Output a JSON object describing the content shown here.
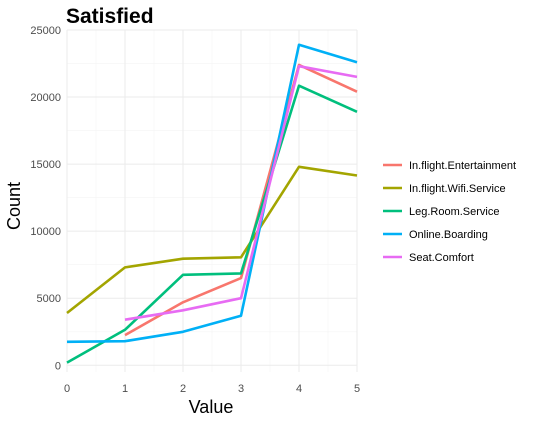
{
  "chart_data": {
    "type": "line",
    "title": "Satisfied",
    "xlabel": "Value",
    "ylabel": "Count",
    "xlim": [
      0,
      5
    ],
    "ylim": [
      -500,
      25000
    ],
    "x_ticks": [
      0,
      1,
      2,
      3,
      4,
      5
    ],
    "y_ticks": [
      0,
      5000,
      10000,
      15000,
      20000,
      25000
    ],
    "x_tick_labels": [
      "0",
      "1",
      "2",
      "3",
      "4",
      "5"
    ],
    "y_tick_labels": [
      "0",
      "5000",
      "10000",
      "15000",
      "20000",
      "25000"
    ],
    "grid": true,
    "legend_position": "right",
    "series": [
      {
        "name": "In.flight.Entertainment",
        "color": "#F8766D",
        "points": [
          [
            1,
            2250
          ],
          [
            2,
            4700
          ],
          [
            3,
            6500
          ],
          [
            4,
            22400
          ],
          [
            5,
            20400
          ]
        ]
      },
      {
        "name": "In.flight.Wifi.Service",
        "color": "#A3A500",
        "points": [
          [
            0,
            3900
          ],
          [
            1,
            7300
          ],
          [
            2,
            7950
          ],
          [
            3,
            8050
          ],
          [
            4,
            14800
          ],
          [
            5,
            14150
          ]
        ]
      },
      {
        "name": "Leg.Room.Service",
        "color": "#00BF7D",
        "points": [
          [
            0,
            200
          ],
          [
            1,
            2650
          ],
          [
            2,
            6750
          ],
          [
            3,
            6850
          ],
          [
            4,
            20850
          ],
          [
            5,
            18900
          ]
        ]
      },
      {
        "name": "Online.Boarding",
        "color": "#00B0F6",
        "points": [
          [
            0,
            1750
          ],
          [
            1,
            1800
          ],
          [
            2,
            2500
          ],
          [
            3,
            3700
          ],
          [
            4,
            23900
          ],
          [
            5,
            22600
          ]
        ]
      },
      {
        "name": "Seat.Comfort",
        "color": "#E76BF3",
        "points": [
          [
            1,
            3400
          ],
          [
            2,
            4100
          ],
          [
            3,
            5000
          ],
          [
            4,
            22300
          ],
          [
            5,
            21500
          ]
        ]
      }
    ]
  }
}
